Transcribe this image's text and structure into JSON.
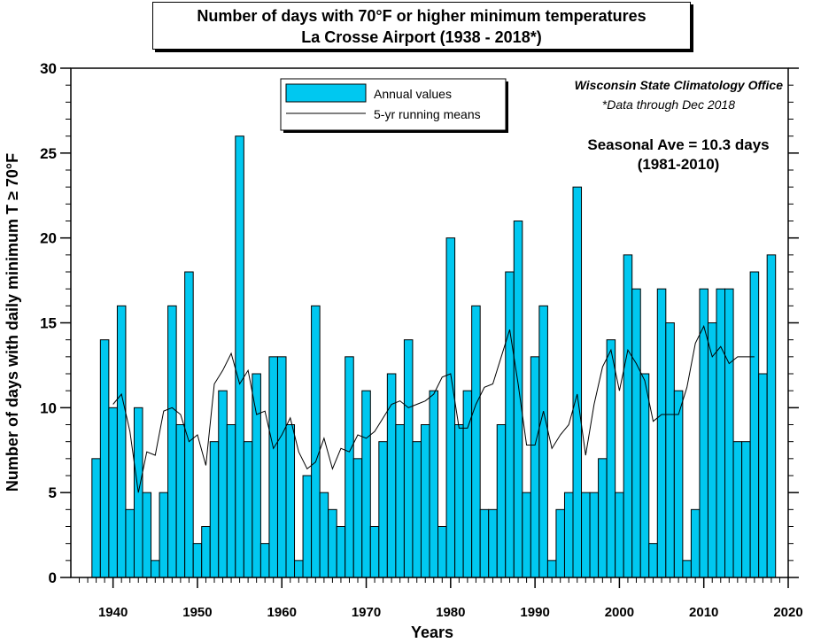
{
  "chart_data": {
    "type": "bar",
    "title": "Number of days with 70°F or higher minimum temperatures",
    "subtitle": "La Crosse Airport (1938 - 2018*)",
    "xlabel": "Years",
    "ylabel": "Number of days with daily minimum T ≥ 70°F",
    "xlim": [
      1935,
      2020
    ],
    "ylim": [
      0,
      30
    ],
    "x_ticks": [
      "1940",
      "1950",
      "1960",
      "1970",
      "1980",
      "1990",
      "2000",
      "2010",
      "2020"
    ],
    "y_ticks": [
      "0",
      "5",
      "10",
      "15",
      "20",
      "25",
      "30"
    ],
    "grid": false,
    "legend_position": "top-center",
    "series": [
      {
        "name": "Annual values",
        "color": "#00C8F0",
        "x": [
          1938,
          1939,
          1940,
          1941,
          1942,
          1943,
          1944,
          1945,
          1946,
          1947,
          1948,
          1949,
          1950,
          1951,
          1952,
          1953,
          1954,
          1955,
          1956,
          1957,
          1958,
          1959,
          1960,
          1961,
          1962,
          1963,
          1964,
          1965,
          1966,
          1967,
          1968,
          1969,
          1970,
          1971,
          1972,
          1973,
          1974,
          1975,
          1976,
          1977,
          1978,
          1979,
          1980,
          1981,
          1982,
          1983,
          1984,
          1985,
          1986,
          1987,
          1988,
          1989,
          1990,
          1991,
          1992,
          1993,
          1994,
          1995,
          1996,
          1997,
          1998,
          1999,
          2000,
          2001,
          2002,
          2003,
          2004,
          2005,
          2006,
          2007,
          2008,
          2009,
          2010,
          2011,
          2012,
          2013,
          2014,
          2015,
          2016,
          2017,
          2018
        ],
        "values": [
          7,
          14,
          10,
          16,
          4,
          10,
          5,
          1,
          5,
          16,
          9,
          18,
          2,
          3,
          8,
          11,
          9,
          26,
          8,
          12,
          2,
          13,
          13,
          9,
          1,
          6,
          16,
          5,
          4,
          3,
          13,
          7,
          11,
          3,
          8,
          12,
          9,
          14,
          8,
          9,
          11,
          3,
          20,
          9,
          11,
          16,
          4,
          4,
          9,
          18,
          21,
          5,
          13,
          16,
          1,
          4,
          5,
          23,
          5,
          5,
          7,
          14,
          5,
          19,
          17,
          12,
          2,
          17,
          15,
          11,
          1,
          4,
          17,
          15,
          17,
          17,
          8,
          8,
          18,
          12,
          19
        ]
      },
      {
        "name": "5-yr running means",
        "color": "#000000",
        "x": [
          1940,
          1941,
          1942,
          1943,
          1944,
          1945,
          1946,
          1947,
          1948,
          1949,
          1950,
          1951,
          1952,
          1953,
          1954,
          1955,
          1956,
          1957,
          1958,
          1959,
          1960,
          1961,
          1962,
          1963,
          1964,
          1965,
          1966,
          1967,
          1968,
          1969,
          1970,
          1971,
          1972,
          1973,
          1974,
          1975,
          1976,
          1977,
          1978,
          1979,
          1980,
          1981,
          1982,
          1983,
          1984,
          1985,
          1986,
          1987,
          1988,
          1989,
          1990,
          1991,
          1992,
          1993,
          1994,
          1995,
          1996,
          1997,
          1998,
          1999,
          2000,
          2001,
          2002,
          2003,
          2004,
          2005,
          2006,
          2007,
          2008,
          2009,
          2010,
          2011,
          2012,
          2013,
          2014,
          2015,
          2016
        ],
        "values": [
          10.2,
          10.8,
          8.6,
          5.0,
          7.4,
          7.2,
          9.8,
          10.0,
          9.6,
          8.0,
          8.4,
          6.6,
          11.4,
          12.2,
          13.2,
          11.4,
          12.2,
          9.6,
          9.8,
          7.6,
          8.4,
          9.4,
          7.4,
          6.4,
          6.8,
          8.2,
          6.4,
          7.6,
          7.4,
          8.4,
          8.2,
          8.6,
          9.4,
          10.2,
          10.4,
          10.0,
          10.2,
          10.4,
          10.8,
          11.8,
          12.0,
          8.8,
          8.8,
          10.2,
          11.2,
          11.4,
          13.0,
          14.6,
          11.4,
          7.8,
          7.8,
          9.8,
          7.6,
          8.4,
          9.0,
          10.8,
          7.2,
          10.2,
          12.4,
          13.4,
          11.0,
          13.4,
          12.6,
          11.6,
          9.2,
          9.6,
          9.6,
          9.6,
          11.2,
          13.8,
          14.8,
          13.0,
          13.6,
          12.6,
          13.0,
          13.0,
          13.0
        ]
      }
    ],
    "annotations": {
      "office": "Wisconsin State Climatology Office",
      "data_note": "*Data through Dec 2018",
      "seasonal_ave": "Seasonal Ave = 10.3 days",
      "seasonal_period": "(1981-2010)"
    }
  }
}
